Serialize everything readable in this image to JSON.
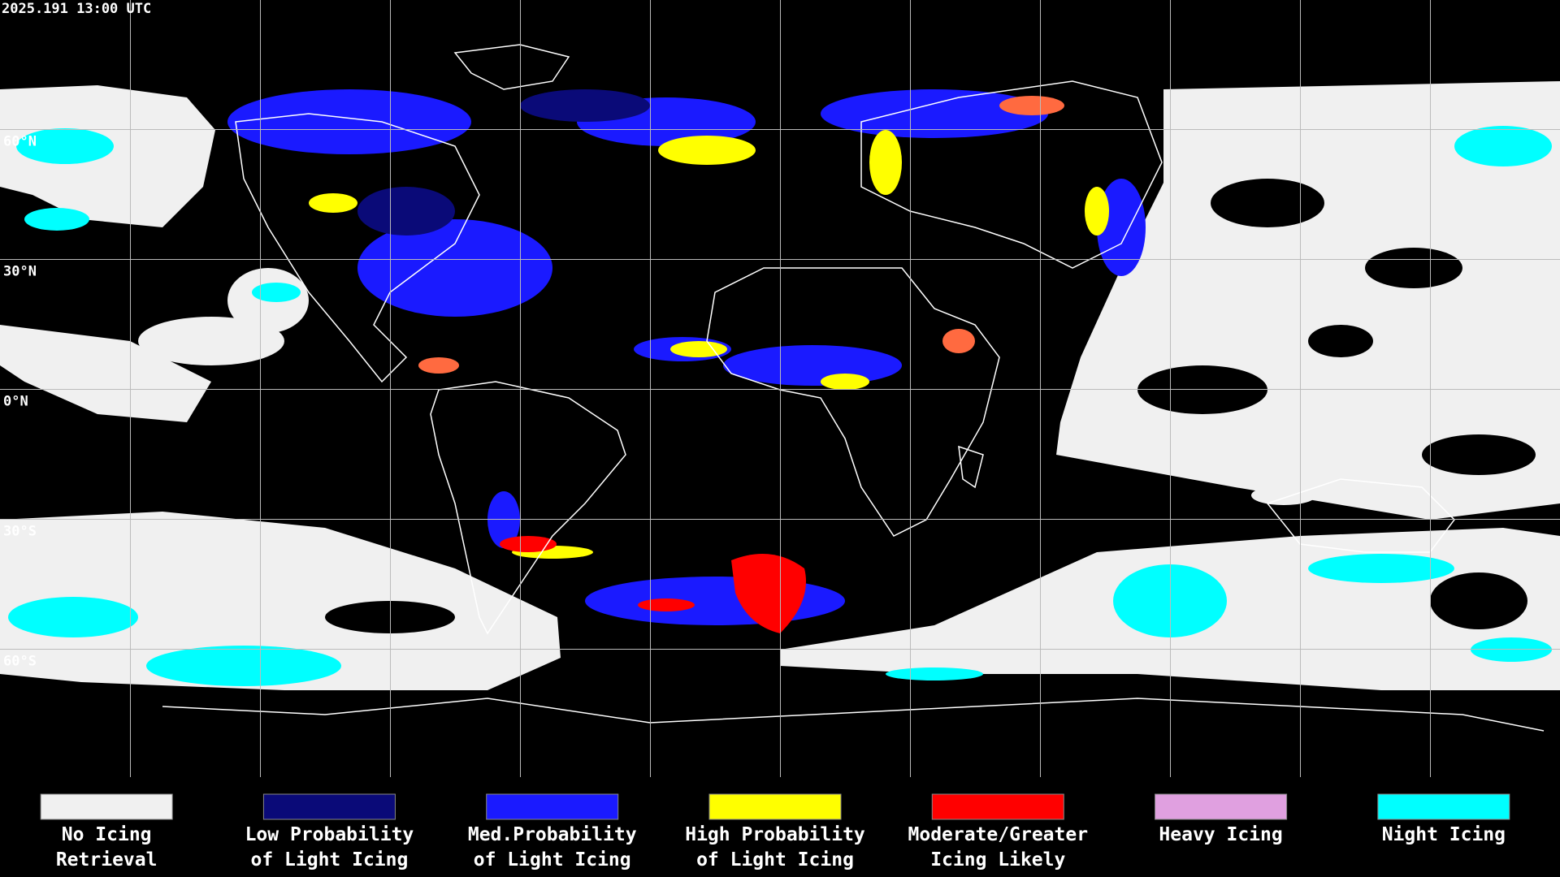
{
  "header": {
    "timestamp": "2025.191 13:00 UTC"
  },
  "map": {
    "lat_labels": [
      "60°N",
      "30°N",
      "0°N",
      "30°S",
      "60°S"
    ]
  },
  "legend": {
    "items": [
      {
        "lines": [
          "No Icing",
          "Retrieval"
        ],
        "color": "#f0f0f0"
      },
      {
        "lines": [
          "Low Probability",
          "of Light Icing"
        ],
        "color": "#0a0a78"
      },
      {
        "lines": [
          "Med.Probability",
          "of Light Icing"
        ],
        "color": "#1a1aff"
      },
      {
        "lines": [
          "High Probability",
          "of Light Icing"
        ],
        "color": "#ffff00"
      },
      {
        "lines": [
          "Moderate/Greater",
          "Icing Likely"
        ],
        "color": "#ff0000"
      },
      {
        "lines": [
          "Heavy Icing"
        ],
        "color": "#e0a0e0"
      },
      {
        "lines": [
          "Night Icing"
        ],
        "color": "#00ffff"
      }
    ]
  }
}
